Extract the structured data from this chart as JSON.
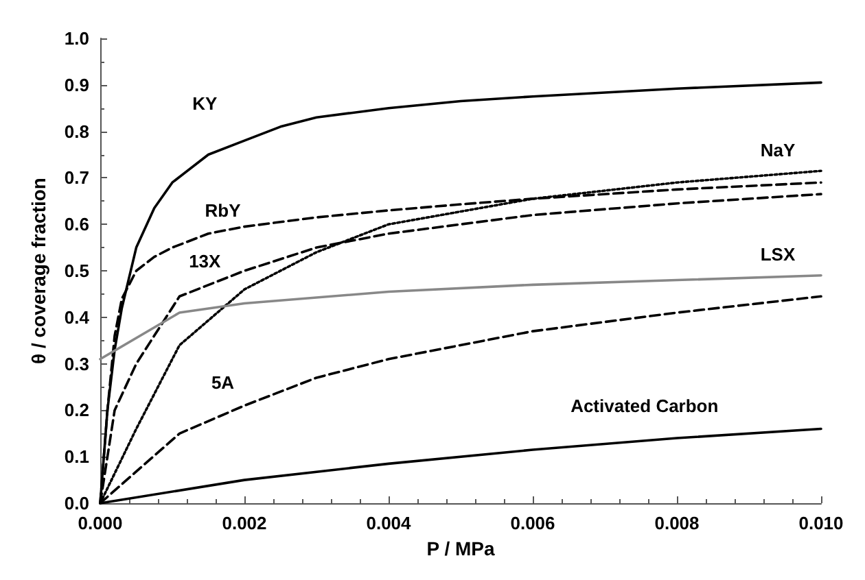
{
  "chart_data": {
    "type": "line",
    "xlabel": "P / MPa",
    "ylabel": "θ / coverage fraction",
    "xlim": [
      0,
      0.01
    ],
    "ylim": [
      0,
      1
    ],
    "xticks": [
      {
        "value": 0,
        "label": "0.000"
      },
      {
        "value": 0.002,
        "label": "0.002"
      },
      {
        "value": 0.004,
        "label": "0.004"
      },
      {
        "value": 0.006,
        "label": "0.006"
      },
      {
        "value": 0.008,
        "label": "0.008"
      },
      {
        "value": 0.01,
        "label": "0.010"
      }
    ],
    "yticks": [
      {
        "value": 0,
        "label": "0.0"
      },
      0.1,
      0.2,
      0.3,
      0.4,
      0.5,
      0.6,
      0.7,
      0.8,
      0.9,
      {
        "value": 1,
        "label": "1.0"
      }
    ],
    "grid": false,
    "legend": false,
    "marker": "none",
    "series": [
      {
        "name": "KY",
        "color": "#000000",
        "line_style": "solid",
        "x": [
          0,
          0.0001,
          0.0002,
          0.0003,
          0.0005,
          0.00075,
          0.001,
          0.0015,
          0.002,
          0.0025,
          0.003,
          0.004,
          0.005,
          0.006,
          0.008,
          0.01
        ],
        "values": [
          0,
          0.2,
          0.33,
          0.42,
          0.55,
          0.635,
          0.69,
          0.75,
          0.78,
          0.81,
          0.83,
          0.85,
          0.865,
          0.875,
          0.892,
          0.905
        ]
      },
      {
        "name": "RbY",
        "color": "#000000",
        "line_style": "dashed",
        "x": [
          0,
          0.0001,
          0.0002,
          0.0003,
          0.0005,
          0.00075,
          0.001,
          0.0015,
          0.002,
          0.0025,
          0.003,
          0.004,
          0.005,
          0.006,
          0.008,
          0.01
        ],
        "values": [
          0,
          0.2,
          0.36,
          0.44,
          0.5,
          0.53,
          0.55,
          0.58,
          0.595,
          0.605,
          0.615,
          0.63,
          0.643,
          0.655,
          0.675,
          0.69
        ]
      },
      {
        "name": "13X",
        "color": "#000000",
        "line_style": "dashed",
        "x": [
          0,
          0.0002,
          0.0005,
          0.0011,
          0.002,
          0.003,
          0.004,
          0.006,
          0.008,
          0.01
        ],
        "values": [
          0,
          0.2,
          0.3,
          0.445,
          0.5,
          0.55,
          0.58,
          0.62,
          0.645,
          0.665
        ]
      },
      {
        "name": "NaY",
        "color": "#000000",
        "line_style": "dotted",
        "x": [
          0,
          0.0005,
          0.0011,
          0.002,
          0.003,
          0.004,
          0.006,
          0.008,
          0.01
        ],
        "values": [
          0,
          0.16,
          0.34,
          0.46,
          0.54,
          0.6,
          0.655,
          0.69,
          0.715
        ]
      },
      {
        "name": "LSX",
        "color": "#888888",
        "line_style": "solid",
        "x": [
          0,
          0.0011,
          0.002,
          0.004,
          0.006,
          0.008,
          0.01
        ],
        "values": [
          0.31,
          0.41,
          0.43,
          0.455,
          0.47,
          0.48,
          0.49
        ]
      },
      {
        "name": "5A",
        "color": "#000000",
        "line_style": "dashed",
        "x": [
          0,
          0.0011,
          0.002,
          0.003,
          0.004,
          0.006,
          0.008,
          0.01
        ],
        "values": [
          0,
          0.15,
          0.21,
          0.27,
          0.31,
          0.37,
          0.41,
          0.445
        ]
      },
      {
        "name": "Activated Carbon",
        "color": "#000000",
        "line_style": "solid",
        "x": [
          0,
          0.002,
          0.004,
          0.006,
          0.008,
          0.01
        ],
        "values": [
          0,
          0.05,
          0.085,
          0.115,
          0.14,
          0.16
        ]
      }
    ]
  }
}
